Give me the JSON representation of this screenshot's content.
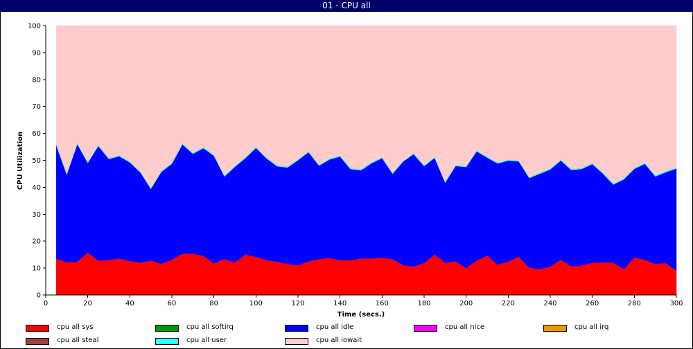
{
  "window": {
    "title": "01 - CPU all"
  },
  "chart_data": {
    "type": "area",
    "stacked": true,
    "title": "01 - CPU all",
    "xlabel": "Time (secs.)",
    "ylabel": "CPU Utilization",
    "xlim": [
      0,
      300
    ],
    "ylim": [
      0,
      100
    ],
    "x_ticks": [
      0,
      20,
      40,
      60,
      80,
      100,
      120,
      140,
      160,
      180,
      200,
      220,
      240,
      260,
      280,
      300
    ],
    "y_ticks": [
      0,
      10,
      20,
      30,
      40,
      50,
      60,
      70,
      80,
      90,
      100
    ],
    "grid": false,
    "legend_position": "bottom",
    "x": [
      5,
      10,
      15,
      20,
      25,
      30,
      35,
      40,
      45,
      50,
      55,
      60,
      65,
      70,
      75,
      80,
      85,
      90,
      95,
      100,
      105,
      110,
      115,
      120,
      125,
      130,
      135,
      140,
      145,
      150,
      155,
      160,
      165,
      170,
      175,
      180,
      185,
      190,
      195,
      200,
      205,
      210,
      215,
      220,
      225,
      230,
      235,
      240,
      245,
      250,
      255,
      260,
      265,
      270,
      275,
      280,
      285,
      290,
      295,
      300
    ],
    "series": [
      {
        "name": "cpu all sys",
        "color": "#ff0000",
        "values": [
          13.5,
          12.2,
          12.4,
          15.8,
          12.8,
          13.0,
          13.6,
          12.6,
          12.1,
          12.8,
          11.6,
          13.2,
          15.4,
          15.4,
          14.6,
          11.8,
          13.4,
          12.1,
          15.1,
          14.2,
          13.0,
          12.4,
          11.6,
          11.1,
          12.5,
          13.4,
          13.8,
          12.9,
          12.9,
          13.6,
          13.6,
          13.9,
          13.4,
          11.1,
          10.6,
          11.9,
          15.1,
          12.0,
          12.6,
          10.0,
          12.8,
          14.7,
          11.3,
          12.4,
          14.3,
          10.2,
          9.6,
          10.6,
          13.2,
          10.7,
          11.0,
          12.0,
          12.1,
          12.1,
          9.6,
          14.0,
          13.1,
          11.6,
          11.9,
          9.1
        ]
      },
      {
        "name": "cpu all softirq",
        "color": "#009900",
        "values": [
          0,
          0,
          0,
          0,
          0,
          0,
          0,
          0,
          0,
          0,
          0,
          0,
          0,
          0,
          0,
          0,
          0,
          0,
          0,
          0,
          0,
          0,
          0,
          0,
          0,
          0,
          0,
          0,
          0,
          0,
          0,
          0,
          0,
          0,
          0,
          0,
          0,
          0,
          0,
          0,
          0,
          0,
          0,
          0,
          0,
          0,
          0,
          0,
          0,
          0,
          0,
          0,
          0,
          0,
          0,
          0,
          0,
          0,
          0,
          0
        ]
      },
      {
        "name": "cpu all idle",
        "color": "#0000ff",
        "values": [
          42.1,
          32.5,
          43.6,
          33.2,
          42.5,
          37.5,
          37.9,
          36.6,
          33.4,
          26.6,
          34.1,
          35.5,
          40.5,
          37.0,
          39.9,
          39.9,
          30.6,
          35.5,
          35.7,
          40.4,
          37.7,
          35.4,
          35.7,
          38.9,
          40.5,
          34.6,
          36.5,
          38.5,
          33.8,
          32.7,
          35.3,
          36.9,
          31.6,
          38.4,
          41.7,
          35.9,
          35.8,
          29.7,
          35.3,
          37.5,
          40.5,
          36.3,
          37.5,
          37.5,
          35.3,
          33.2,
          35.4,
          36.0,
          36.7,
          35.7,
          35.8,
          36.6,
          33.0,
          28.9,
          33.3,
          32.8,
          35.6,
          32.4,
          33.7,
          37.8
        ]
      },
      {
        "name": "cpu all nice",
        "color": "#ff00ff",
        "values": [
          0,
          0,
          0,
          0,
          0,
          0,
          0,
          0,
          0,
          0,
          0,
          0,
          0,
          0,
          0,
          0,
          0,
          0,
          0,
          0,
          0,
          0,
          0,
          0,
          0,
          0,
          0,
          0,
          0,
          0,
          0,
          0,
          0,
          0,
          0,
          0,
          0,
          0,
          0,
          0,
          0,
          0,
          0,
          0,
          0,
          0,
          0,
          0,
          0,
          0,
          0,
          0,
          0,
          0,
          0,
          0,
          0,
          0,
          0,
          0
        ]
      },
      {
        "name": "cpu all irq",
        "color": "#e69900",
        "values": [
          0,
          0,
          0,
          0,
          0,
          0,
          0,
          0,
          0,
          0,
          0,
          0,
          0,
          0,
          0,
          0,
          0,
          0,
          0,
          0,
          0,
          0,
          0,
          0,
          0,
          0,
          0,
          0,
          0,
          0,
          0,
          0,
          0,
          0,
          0,
          0,
          0,
          0,
          0,
          0,
          0,
          0,
          0,
          0,
          0,
          0,
          0,
          0,
          0,
          0,
          0,
          0,
          0,
          0,
          0,
          0,
          0,
          0,
          0,
          0
        ]
      },
      {
        "name": "cpu all steal",
        "color": "#a04040",
        "values": [
          0,
          0,
          0,
          0,
          0,
          0,
          0,
          0,
          0,
          0,
          0,
          0,
          0,
          0,
          0,
          0,
          0,
          0,
          0,
          0,
          0,
          0,
          0,
          0,
          0,
          0,
          0,
          0,
          0,
          0,
          0,
          0,
          0,
          0,
          0,
          0,
          0,
          0,
          0,
          0,
          0,
          0,
          0,
          0,
          0,
          0,
          0,
          0,
          0,
          0,
          0,
          0,
          0,
          0,
          0,
          0,
          0,
          0,
          0,
          0
        ]
      },
      {
        "name": "cpu all user",
        "color": "#33ffff",
        "values": [
          0.4,
          0.4,
          0.4,
          0.4,
          0.4,
          0.4,
          0.4,
          0.4,
          0.4,
          0.4,
          0.4,
          0.4,
          0.4,
          0.4,
          0.4,
          0.4,
          0.4,
          0.4,
          0.4,
          0.4,
          0.4,
          0.4,
          0.4,
          0.4,
          0.4,
          0.4,
          0.4,
          0.4,
          0.4,
          0.4,
          0.4,
          0.4,
          0.4,
          0.4,
          0.4,
          0.4,
          0.4,
          0.4,
          0.4,
          0.4,
          0.4,
          0.4,
          0.4,
          0.4,
          0.4,
          0.4,
          0.4,
          0.4,
          0.4,
          0.4,
          0.4,
          0.4,
          0.4,
          0.4,
          0.4,
          0.4,
          0.4,
          0.4,
          0.4,
          0.4
        ]
      },
      {
        "name": "cpu all iowait",
        "color": "#ffcccc",
        "values": [
          44.0,
          54.9,
          43.6,
          50.6,
          44.3,
          49.1,
          48.1,
          50.4,
          54.1,
          60.2,
          53.9,
          50.9,
          43.7,
          47.2,
          45.1,
          47.9,
          55.6,
          52.0,
          48.8,
          45.0,
          48.9,
          51.8,
          52.3,
          49.6,
          46.6,
          51.6,
          49.3,
          48.2,
          52.9,
          53.3,
          50.7,
          48.8,
          54.6,
          50.1,
          47.3,
          51.8,
          48.7,
          57.9,
          51.7,
          52.1,
          46.3,
          48.6,
          50.8,
          49.7,
          50.0,
          56.2,
          54.6,
          53.0,
          49.7,
          53.2,
          52.8,
          51.0,
          54.5,
          58.6,
          56.7,
          52.8,
          50.9,
          55.6,
          54.0,
          52.7
        ]
      }
    ]
  },
  "legend": {
    "items": [
      {
        "label": "cpu all sys",
        "color": "#ff0000"
      },
      {
        "label": "cpu all softirq",
        "color": "#009900"
      },
      {
        "label": "cpu all idle",
        "color": "#0000ff"
      },
      {
        "label": "cpu all nice",
        "color": "#ff00ff"
      },
      {
        "label": "cpu all irq",
        "color": "#e69900"
      },
      {
        "label": "cpu all steal",
        "color": "#a04040"
      },
      {
        "label": "cpu all user",
        "color": "#33ffff"
      },
      {
        "label": "cpu all iowait",
        "color": "#ffcccc"
      }
    ]
  }
}
